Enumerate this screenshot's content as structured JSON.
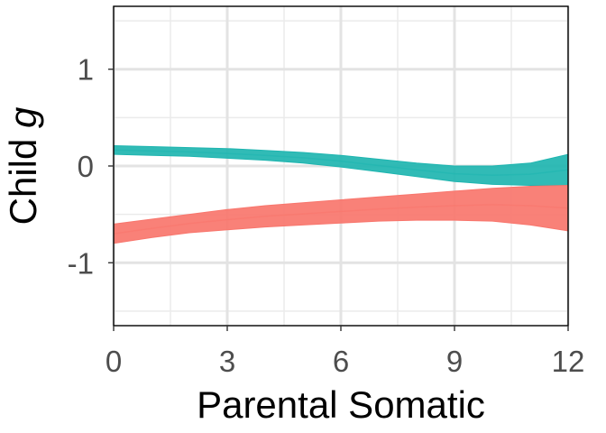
{
  "chart_data": {
    "type": "area",
    "title": "",
    "xlabel": "Parental Somatic",
    "ylabel_prefix": "Child ",
    "ylabel_var": "g",
    "xlim": [
      0,
      12
    ],
    "ylim": [
      -1.65,
      1.65
    ],
    "x_ticks": [
      0,
      3,
      6,
      9,
      12
    ],
    "x_tick_labels": [
      "0",
      "3",
      "6",
      "9",
      "12"
    ],
    "y_ticks": [
      -1,
      0,
      1
    ],
    "y_tick_labels": [
      "-1",
      "0",
      "1"
    ],
    "grid": true,
    "legend": "none",
    "x": [
      0,
      1,
      2,
      3,
      4,
      5,
      6,
      7,
      8,
      9,
      10,
      11,
      12
    ],
    "series": [
      {
        "color": "#1fb5b0",
        "lower": [
          0.12,
          0.11,
          0.1,
          0.08,
          0.06,
          0.03,
          -0.01,
          -0.06,
          -0.11,
          -0.16,
          -0.19,
          -0.2,
          -0.2
        ],
        "upper": [
          0.21,
          0.2,
          0.19,
          0.18,
          0.16,
          0.14,
          0.11,
          0.07,
          0.03,
          0.0,
          0.0,
          0.03,
          0.12
        ]
      },
      {
        "color": "#f8766d",
        "lower": [
          -0.8,
          -0.74,
          -0.69,
          -0.66,
          -0.63,
          -0.61,
          -0.59,
          -0.57,
          -0.56,
          -0.56,
          -0.57,
          -0.61,
          -0.67
        ],
        "upper": [
          -0.6,
          -0.55,
          -0.5,
          -0.45,
          -0.41,
          -0.38,
          -0.35,
          -0.32,
          -0.29,
          -0.26,
          -0.23,
          -0.21,
          -0.2
        ]
      }
    ]
  }
}
